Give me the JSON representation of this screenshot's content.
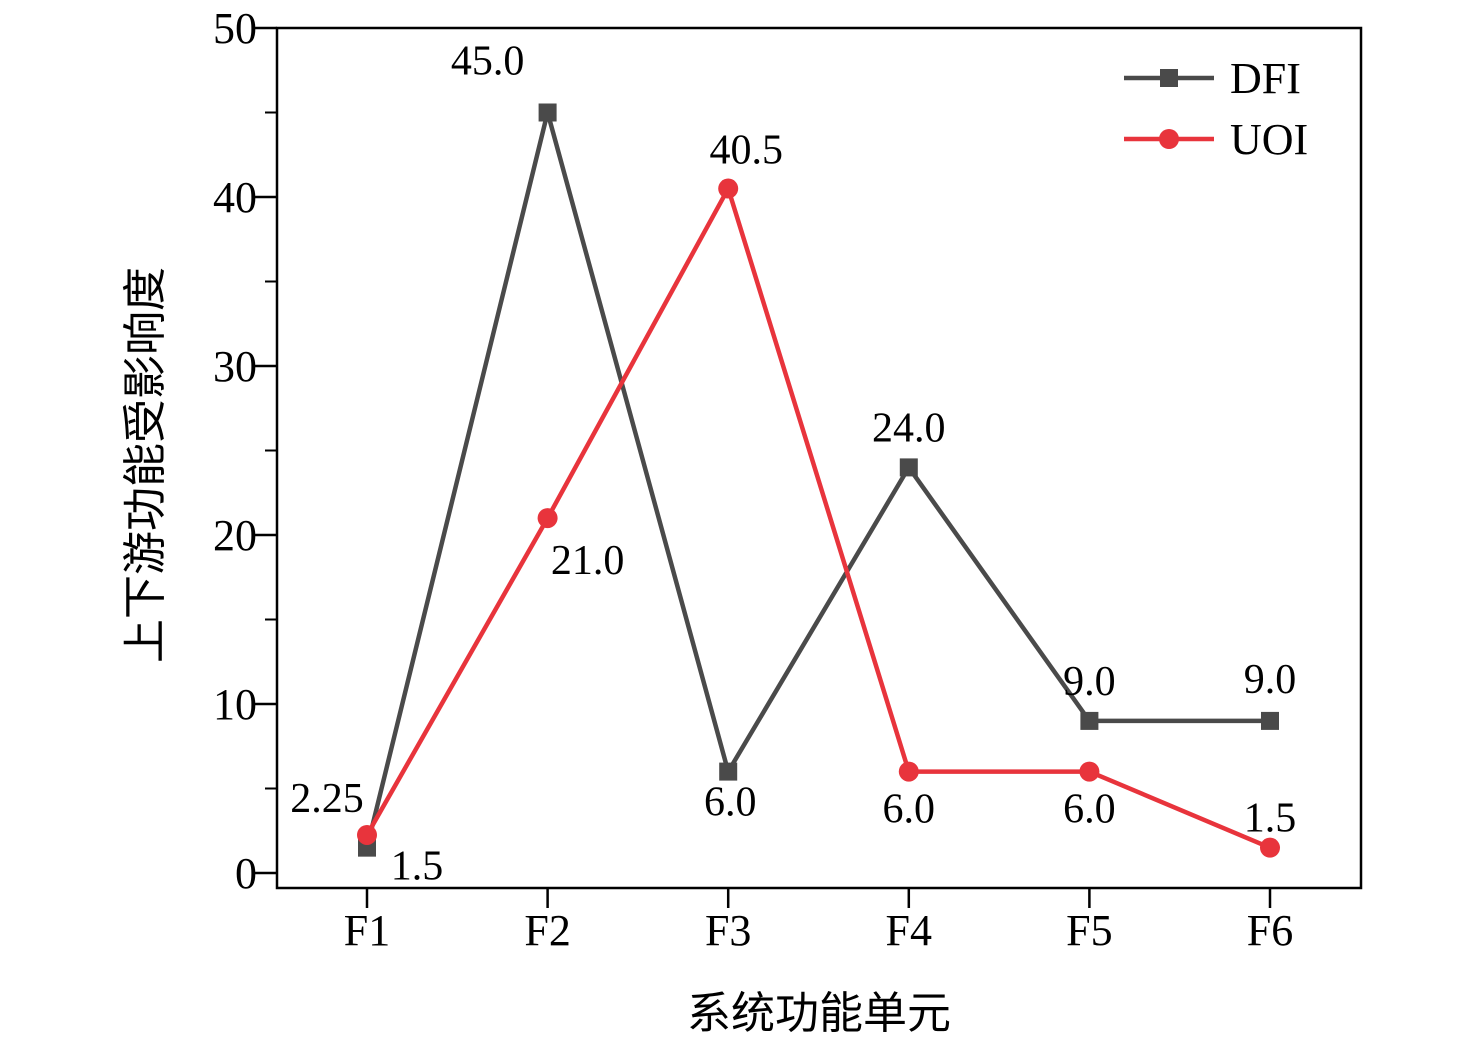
{
  "chart_data": {
    "type": "line",
    "title": "",
    "xlabel": "系统功能单元",
    "ylabel": "上下游功能受影响度",
    "categories": [
      "F1",
      "F2",
      "F3",
      "F4",
      "F5",
      "F6"
    ],
    "ylim": [
      0,
      50
    ],
    "yticks": [
      "0",
      "10",
      "20",
      "30",
      "40",
      "50"
    ],
    "grid": false,
    "legend_position": "top-right",
    "series": [
      {
        "name": "DFI",
        "color": "#4a4a4a",
        "marker": "square",
        "values": [
          1.5,
          45.0,
          6.0,
          24.0,
          9.0,
          9.0
        ],
        "labels": [
          "1.5",
          "45.0",
          "6.0",
          "24.0",
          "9.0",
          "9.0"
        ]
      },
      {
        "name": "UOI",
        "color": "#e8343c",
        "marker": "circle",
        "values": [
          2.25,
          21.0,
          40.5,
          6.0,
          6.0,
          1.5
        ],
        "labels": [
          "2.25",
          "21.0",
          "40.5",
          "6.0",
          "6.0",
          "1.5"
        ]
      }
    ]
  }
}
